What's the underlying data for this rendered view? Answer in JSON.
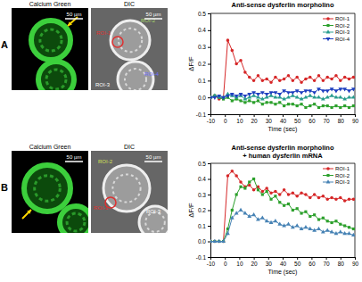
{
  "chart_data": [
    {
      "type": "line",
      "title": "Anti-sense dysferlin morpholino",
      "x_label": "Time (sec)",
      "y_label": "ΔF/F",
      "x": [
        -10,
        -7,
        -4,
        -1,
        2,
        5,
        8,
        11,
        14,
        17,
        20,
        23,
        26,
        29,
        32,
        35,
        38,
        41,
        44,
        47,
        50,
        53,
        56,
        59,
        62,
        65,
        68,
        71,
        74,
        77,
        80,
        83,
        86,
        89
      ],
      "xlim": [
        -10,
        90
      ],
      "xticks": [
        -10,
        0,
        10,
        20,
        30,
        40,
        50,
        60,
        70,
        80,
        90
      ],
      "ylim": [
        -0.1,
        0.5
      ],
      "yticks": [
        -0.1,
        {
          "value": 0,
          "label": "0.0"
        },
        0.1,
        0.2,
        0.3,
        0.4,
        0.5
      ],
      "legend": "top-right",
      "series": [
        {
          "name": "ROI-1",
          "color": "#d62728",
          "marker": "circle",
          "values": [
            0,
            0.01,
            -0.01,
            0,
            0.34,
            0.28,
            0.2,
            0.22,
            0.15,
            0.12,
            0.1,
            0.13,
            0.1,
            0.11,
            0.09,
            0.12,
            0.1,
            0.11,
            0.13,
            0.1,
            0.12,
            0.09,
            0.11,
            0.12,
            0.1,
            0.13,
            0.1,
            0.12,
            0.11,
            0.13,
            0.1,
            0.12,
            0.11,
            0.12
          ]
        },
        {
          "name": "ROI-2",
          "color": "#2ca02c",
          "marker": "square",
          "values": [
            0,
            0.01,
            0,
            -0.01,
            0,
            -0.02,
            -0.01,
            -0.02,
            -0.03,
            -0.02,
            -0.03,
            -0.02,
            -0.04,
            -0.03,
            -0.03,
            -0.04,
            -0.03,
            -0.05,
            -0.04,
            -0.04,
            -0.05,
            -0.04,
            -0.06,
            -0.05,
            -0.04,
            -0.06,
            -0.05,
            -0.05,
            -0.06,
            -0.05,
            -0.06,
            -0.05,
            -0.06,
            -0.05
          ]
        },
        {
          "name": "ROI-3",
          "color": "#2a9d8f",
          "marker": "triangle-up",
          "values": [
            0,
            0.01,
            0,
            0,
            0.02,
            0.01,
            0,
            0.01,
            -0.01,
            0,
            0.01,
            0,
            -0.01,
            0,
            0.01,
            0,
            0,
            -0.01,
            0,
            0.01,
            0,
            -0.01,
            0,
            0.01,
            0,
            0,
            -0.01,
            0,
            0.01,
            0,
            0,
            -0.01,
            0,
            0
          ]
        },
        {
          "name": "ROI-4",
          "color": "#1f3fbf",
          "marker": "triangle-down",
          "values": [
            0,
            0,
            0.01,
            0,
            0.01,
            0.02,
            0.01,
            0.02,
            0.01,
            0.02,
            0.03,
            0.02,
            0.03,
            0.02,
            0.03,
            0.03,
            0.02,
            0.04,
            0.03,
            0.03,
            0.04,
            0.03,
            0.04,
            0.04,
            0.03,
            0.05,
            0.04,
            0.04,
            0.05,
            0.04,
            0.05,
            0.05,
            0.04,
            0.05
          ]
        }
      ]
    },
    {
      "type": "line",
      "title": "Anti-sense dysferlin morpholino + human dysferlin mRNA",
      "x_label": "Time (sec)",
      "y_label": "ΔF/F",
      "x": [
        -10,
        -7,
        -4,
        -1,
        2,
        5,
        8,
        11,
        14,
        17,
        20,
        23,
        26,
        29,
        32,
        35,
        38,
        41,
        44,
        47,
        50,
        53,
        56,
        59,
        62,
        65,
        68,
        71,
        74,
        77,
        80,
        83,
        86,
        89
      ],
      "xlim": [
        -10,
        90
      ],
      "xticks": [
        -10,
        0,
        10,
        20,
        30,
        40,
        50,
        60,
        70,
        80,
        90
      ],
      "ylim": [
        -0.1,
        0.5
      ],
      "yticks": [
        -0.1,
        {
          "value": 0,
          "label": "0.0"
        },
        0.1,
        0.2,
        0.3,
        0.4,
        0.5
      ],
      "legend": "top-right",
      "series": [
        {
          "name": "ROI-1",
          "color": "#d62728",
          "marker": "circle",
          "values": [
            0,
            0,
            0,
            0,
            0.42,
            0.45,
            0.42,
            0.38,
            0.35,
            0.36,
            0.33,
            0.35,
            0.32,
            0.34,
            0.31,
            0.32,
            0.3,
            0.33,
            0.3,
            0.31,
            0.29,
            0.31,
            0.3,
            0.28,
            0.3,
            0.28,
            0.29,
            0.27,
            0.28,
            0.27,
            0.28,
            0.26,
            0.27,
            0.27
          ]
        },
        {
          "name": "ROI-2",
          "color": "#2ca02c",
          "marker": "square",
          "values": [
            0,
            0,
            0,
            0,
            0.08,
            0.2,
            0.3,
            0.35,
            0.34,
            0.38,
            0.4,
            0.33,
            0.3,
            0.32,
            0.27,
            0.29,
            0.25,
            0.23,
            0.24,
            0.2,
            0.21,
            0.18,
            0.19,
            0.16,
            0.17,
            0.14,
            0.15,
            0.13,
            0.12,
            0.13,
            0.11,
            0.1,
            0.09,
            0.08
          ]
        },
        {
          "name": "ROI-3",
          "color": "#4682b4",
          "marker": "triangle-up",
          "values": [
            0,
            0,
            0,
            0,
            0.05,
            0.15,
            0.18,
            0.2,
            0.18,
            0.16,
            0.17,
            0.14,
            0.15,
            0.13,
            0.12,
            0.13,
            0.11,
            0.1,
            0.11,
            0.09,
            0.1,
            0.08,
            0.09,
            0.08,
            0.07,
            0.08,
            0.06,
            0.07,
            0.06,
            0.05,
            0.06,
            0.05,
            0.05,
            0.04
          ]
        }
      ]
    }
  ],
  "figure": {
    "panels": [
      {
        "label": "A",
        "images": [
          {
            "title": "Calcium Green",
            "scale_bar": "50 µm"
          },
          {
            "title": "DIC",
            "scale_bar": "50 µm",
            "rois": [
              {
                "text": "ROI-1",
                "color": "#e03030"
              },
              {
                "text": "ROI-2",
                "color": "#a6d96a"
              },
              {
                "text": "ROI-3",
                "color": "#ffffff"
              },
              {
                "text": "ROI-4",
                "color": "#7070ff"
              }
            ]
          }
        ]
      },
      {
        "label": "B",
        "images": [
          {
            "title": "Calcium Green",
            "scale_bar": "50 µm"
          },
          {
            "title": "DIC",
            "scale_bar": "50 µm",
            "rois": [
              {
                "text": "ROI-2",
                "color": "#d4e157"
              },
              {
                "text": "ROI-1",
                "color": "#e03030"
              },
              {
                "text": "ROI-3",
                "color": "#ffffff"
              }
            ]
          }
        ]
      }
    ]
  }
}
